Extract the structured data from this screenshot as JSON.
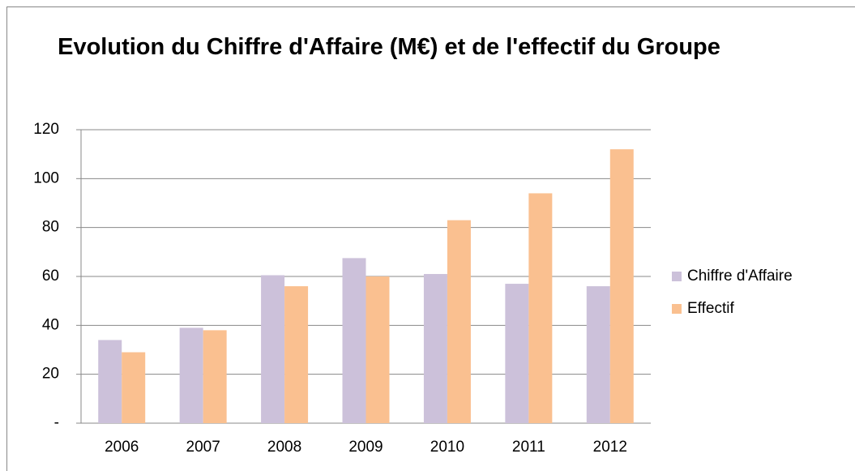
{
  "chart_data": {
    "type": "bar",
    "title": "Evolution du Chiffre d'Affaire (M€) et de l'effectif du Groupe",
    "categories": [
      "2006",
      "2007",
      "2008",
      "2009",
      "2010",
      "2011",
      "2012"
    ],
    "series": [
      {
        "name": "Chiffre d'Affaire",
        "color": "#ccc1da",
        "values": [
          34,
          39,
          60.5,
          67.5,
          61,
          57,
          56
        ]
      },
      {
        "name": "Effectif",
        "color": "#fac090",
        "values": [
          29,
          38,
          56,
          60,
          83,
          94,
          112
        ]
      }
    ],
    "ylim": [
      0,
      120
    ],
    "yticks": [
      {
        "value": 0,
        "label": "-"
      },
      20,
      40,
      60,
      80,
      100,
      120
    ],
    "grid": true,
    "legend": "right"
  }
}
